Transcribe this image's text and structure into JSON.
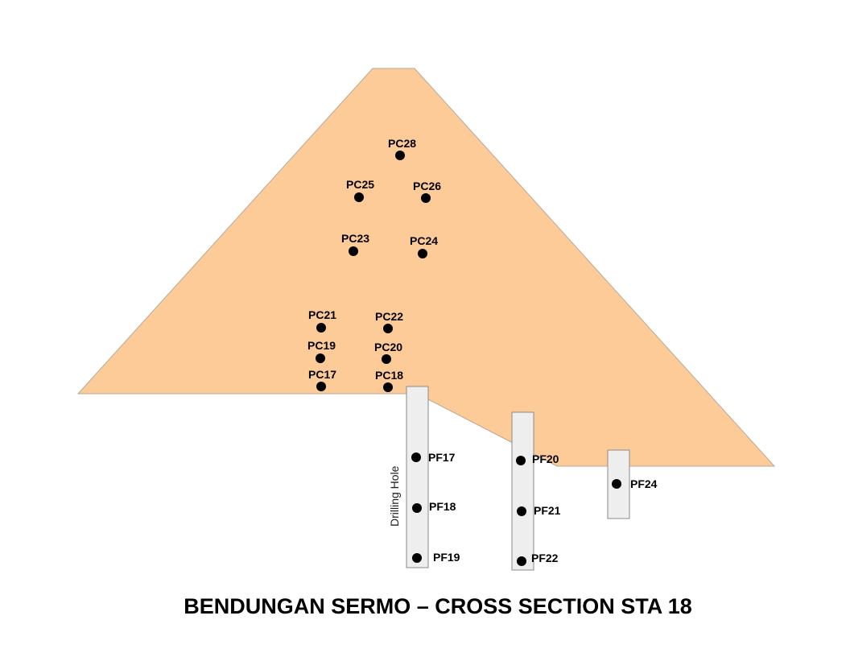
{
  "title": "BENDUNGAN SERMO – CROSS SECTION STA 18",
  "drilling_hole_label": "Drilling Hole",
  "colors": {
    "dam_fill": "#FDCB98",
    "dam_stroke": "#B8A898",
    "hole_fill": "#EEEEEE",
    "hole_stroke": "#8A8A8A",
    "point": "#000000",
    "text": "#000000"
  },
  "dam_points": [
    {
      "id": "PC28",
      "label": "PC28"
    },
    {
      "id": "PC25",
      "label": "PC25"
    },
    {
      "id": "PC26",
      "label": "PC26"
    },
    {
      "id": "PC23",
      "label": "PC23"
    },
    {
      "id": "PC24",
      "label": "PC24"
    },
    {
      "id": "PC21",
      "label": "PC21"
    },
    {
      "id": "PC22",
      "label": "PC22"
    },
    {
      "id": "PC19",
      "label": "PC19"
    },
    {
      "id": "PC20",
      "label": "PC20"
    },
    {
      "id": "PC17",
      "label": "PC17"
    },
    {
      "id": "PC18",
      "label": "PC18"
    }
  ],
  "foundation_points": [
    {
      "id": "PF17",
      "label": "PF17"
    },
    {
      "id": "PF18",
      "label": "PF18"
    },
    {
      "id": "PF19",
      "label": "PF19"
    },
    {
      "id": "PF20",
      "label": "PF20"
    },
    {
      "id": "PF21",
      "label": "PF21"
    },
    {
      "id": "PF22",
      "label": "PF22"
    },
    {
      "id": "PF24",
      "label": "PF24"
    }
  ]
}
